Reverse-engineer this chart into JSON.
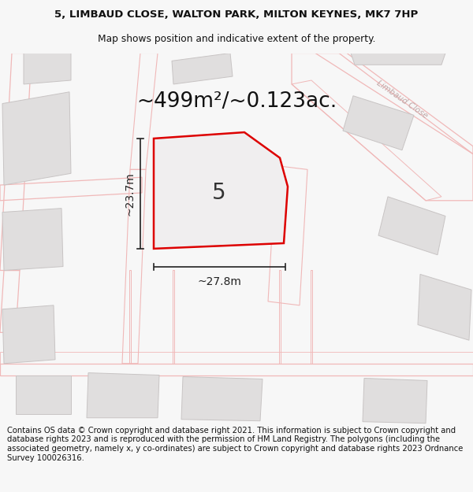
{
  "title_line1": "5, LIMBAUD CLOSE, WALTON PARK, MILTON KEYNES, MK7 7HP",
  "title_line2": "Map shows position and indicative extent of the property.",
  "area_text": "~499m²/~0.123ac.",
  "number_label": "5",
  "dim_height": "~23.7m",
  "dim_width": "~27.8m",
  "footer_text": "Contains OS data © Crown copyright and database right 2021. This information is subject to Crown copyright and database rights 2023 and is reproduced with the permission of HM Land Registry. The polygons (including the associated geometry, namely x, y co-ordinates) are subject to Crown copyright and database rights 2023 Ordnance Survey 100026316.",
  "bg_color": "#f7f7f7",
  "map_bg": "#f5f3f3",
  "plot_fill": "#f0eeee",
  "plot_stroke": "#dd0000",
  "road_outline": "#f0b8b8",
  "building_color": "#e0dede",
  "building_stroke": "#c8c4c4",
  "road_label_color": "#c0a8a8",
  "dim_line_color": "#222222",
  "title_fontsize": 9.5,
  "subtitle_fontsize": 8.8,
  "area_fontsize": 19,
  "number_fontsize": 20,
  "dim_fontsize": 10,
  "footer_fontsize": 7.2
}
